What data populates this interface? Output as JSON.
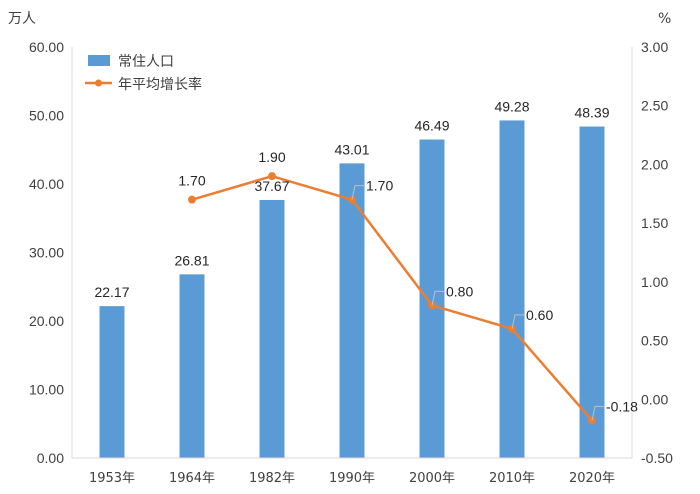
{
  "chart_data": {
    "type": "bar",
    "left_unit": "万人",
    "right_unit": "%",
    "categories": [
      "1953年",
      "1964年",
      "1982年",
      "1990年",
      "2000年",
      "2010年",
      "2020年"
    ],
    "left_ticks": [
      "0.00",
      "10.00",
      "20.00",
      "30.00",
      "40.00",
      "50.00",
      "60.00"
    ],
    "right_ticks": [
      "-0.50",
      "0.00",
      "0.50",
      "1.00",
      "1.50",
      "2.00",
      "2.50",
      "3.00"
    ],
    "ylim_left": [
      0,
      60
    ],
    "ylim_right": [
      -0.5,
      3.0
    ],
    "series": [
      {
        "name": "常住人口",
        "kind": "bar",
        "axis": "left",
        "color": "#5B9BD5",
        "values": [
          22.17,
          26.81,
          37.67,
          43.01,
          46.49,
          49.28,
          48.39
        ],
        "labels": [
          "22.17",
          "26.81",
          "37.67",
          "43.01",
          "46.49",
          "49.28",
          "48.39"
        ]
      },
      {
        "name": "年平均增长率",
        "kind": "line",
        "axis": "right",
        "color": "#ED7D31",
        "values": [
          null,
          1.7,
          1.9,
          1.7,
          0.8,
          0.6,
          -0.18
        ],
        "labels": [
          "",
          "1.70",
          "1.90",
          "1.70",
          "0.80",
          "0.60",
          "-0.18"
        ]
      }
    ],
    "legend": {
      "position": "top-left",
      "entries": [
        "常住人口",
        "年平均增长率"
      ]
    },
    "grid": false
  }
}
